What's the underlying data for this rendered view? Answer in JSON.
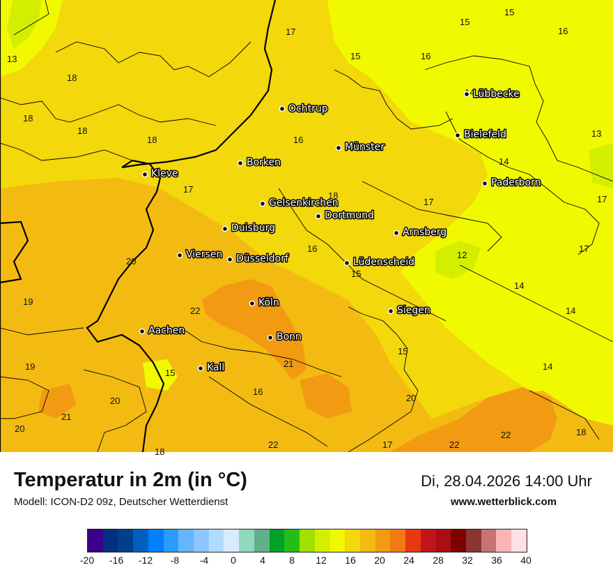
{
  "title": "Temperatur in 2m (in °C)",
  "model": "Modell: ICON-D2 09z, Deutscher Wetterdienst",
  "datetime": "Di, 28.04.2026 14:00 Uhr",
  "website": "www.wetterblick.com",
  "cities": [
    {
      "name": "Ochtrup"
    },
    {
      "name": "Münster"
    },
    {
      "name": "Lübbecke"
    },
    {
      "name": "Bielefeld"
    },
    {
      "name": "Borken"
    },
    {
      "name": "Kleve"
    },
    {
      "name": "Paderborn"
    },
    {
      "name": "Gelsenkirchen"
    },
    {
      "name": "Dortmund"
    },
    {
      "name": "Duisburg"
    },
    {
      "name": "Arnsberg"
    },
    {
      "name": "Viersen"
    },
    {
      "name": "Düsseldorf"
    },
    {
      "name": "Lüdenscheid"
    },
    {
      "name": "Köln"
    },
    {
      "name": "Siegen"
    },
    {
      "name": "Aachen"
    },
    {
      "name": "Bonn"
    },
    {
      "name": "Kall"
    }
  ],
  "temperatures": [
    "15",
    "17",
    "16",
    "15",
    "16",
    "13",
    "18",
    "18",
    "18",
    "15",
    "18",
    "16",
    "14",
    "13",
    "14",
    "17",
    "17",
    "18",
    "17",
    "20",
    "16",
    "12",
    "17",
    "15",
    "14",
    "19",
    "22",
    "14",
    "21",
    "15",
    "19",
    "15",
    "14",
    "16",
    "20",
    "20",
    "21",
    "20",
    "22",
    "17",
    "22",
    "22",
    "18",
    "18"
  ],
  "legend": {
    "colors": [
      "#3b008c",
      "#00307f",
      "#003f8a",
      "#005fbf",
      "#007fff",
      "#2a9cff",
      "#66b6ff",
      "#8cc8ff",
      "#b3dbff",
      "#d6ebff",
      "#8fd9bd",
      "#60b08a",
      "#00a02a",
      "#24bd18",
      "#a2e000",
      "#d4ee00",
      "#f1f900",
      "#f3d80b",
      "#f3bb12",
      "#f29b12",
      "#f27a12",
      "#e8380f",
      "#c0161a",
      "#a80e14",
      "#7f0000",
      "#8c3333",
      "#c87373",
      "#fab4b4",
      "#ffe0e4"
    ],
    "ticks": [
      "-20",
      "-16",
      "-12",
      "-8",
      "-4",
      "0",
      "4",
      "8",
      "12",
      "16",
      "20",
      "24",
      "28",
      "32",
      "36",
      "40"
    ]
  }
}
